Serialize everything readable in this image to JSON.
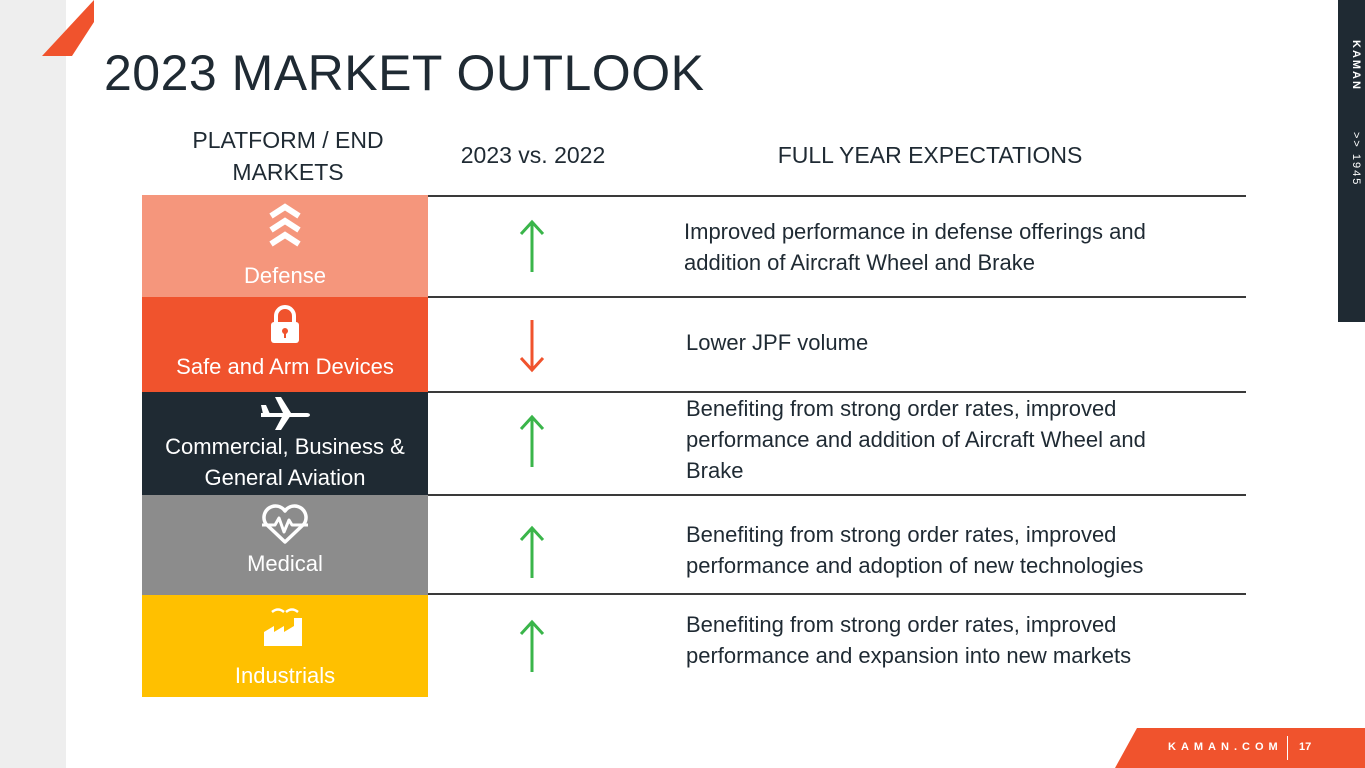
{
  "page": {
    "title": "2023 MARKET OUTLOOK"
  },
  "columns": {
    "platform": "PLATFORM / END MARKETS",
    "change": "2023 vs. 2022",
    "expectations": "FULL YEAR EXPECTATIONS"
  },
  "rows": [
    {
      "market": "Defense",
      "icon": "chevrons-up-icon",
      "color": "#f5967c",
      "direction": "up",
      "expectation": "Improved performance in defense offerings and addition of Aircraft Wheel and Brake"
    },
    {
      "market": "Safe and Arm Devices",
      "icon": "lock-icon",
      "color": "#f0532d",
      "direction": "down",
      "expectation": "Lower JPF volume"
    },
    {
      "market": "Commercial, Business & General Aviation",
      "icon": "airplane-icon",
      "color": "#1f2a33",
      "direction": "up",
      "expectation": "Benefiting from strong order rates, improved performance and addition of Aircraft Wheel and Brake"
    },
    {
      "market": "Medical",
      "icon": "heartbeat-icon",
      "color": "#8c8c8c",
      "direction": "up",
      "expectation": "Benefiting from strong order rates, improved performance and adoption of new technologies"
    },
    {
      "market": "Industrials",
      "icon": "factory-icon",
      "color": "#ffc000",
      "direction": "up",
      "expectation": "Benefiting from strong order rates, improved performance and expansion into new markets"
    }
  ],
  "colors": {
    "up_arrow": "#3ab54a",
    "down_arrow": "#f0532d",
    "accent": "#f0532d"
  },
  "sidebar": {
    "brand": "KAMAN",
    "chevrons": ">>",
    "year": "1945"
  },
  "footer": {
    "site": "KAMAN.COM",
    "page_number": "17"
  }
}
